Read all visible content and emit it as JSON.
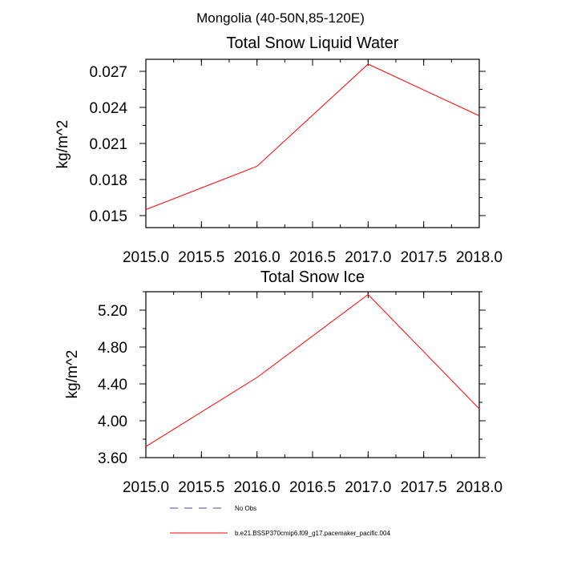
{
  "figure": {
    "suptitle": "Mongolia (40-50N,85-120E)"
  },
  "chart_data": [
    {
      "type": "line",
      "title": "Total Snow Liquid Water",
      "xlabel": "",
      "ylabel": "kg/m^2",
      "xlim": [
        2015.0,
        2018.0
      ],
      "ylim": [
        0.014,
        0.028
      ],
      "x_ticks": [
        2015.0,
        2015.5,
        2016.0,
        2016.5,
        2017.0,
        2017.5,
        2018.0
      ],
      "x_tick_labels": [
        "2015.0",
        "2015.5",
        "2016.0",
        "2016.5",
        "2017.0",
        "2017.5",
        "2018.0"
      ],
      "y_ticks": [
        0.015,
        0.018,
        0.021,
        0.024,
        0.027
      ],
      "y_tick_labels": [
        "0.015",
        "0.018",
        "0.021",
        "0.024",
        "0.027"
      ],
      "grid": false,
      "series": [
        {
          "name": "b.e21.BSSP370cmip6.f09_g17.pacemaker_pacific.004",
          "color": "#ff0000",
          "x": [
            2015.0,
            2016.0,
            2017.0,
            2018.0
          ],
          "values": [
            0.0155,
            0.0191,
            0.0276,
            0.0233
          ]
        }
      ]
    },
    {
      "type": "line",
      "title": "Total Snow Ice",
      "xlabel": "",
      "ylabel": "kg/m^2",
      "xlim": [
        2015.0,
        2018.0
      ],
      "ylim": [
        3.6,
        5.4
      ],
      "x_ticks": [
        2015.0,
        2015.5,
        2016.0,
        2016.5,
        2017.0,
        2017.5,
        2018.0
      ],
      "x_tick_labels": [
        "2015.0",
        "2015.5",
        "2016.0",
        "2016.5",
        "2017.0",
        "2017.5",
        "2018.0"
      ],
      "y_ticks": [
        3.6,
        4.0,
        4.4,
        4.8,
        5.2
      ],
      "y_tick_labels": [
        "3.60",
        "4.00",
        "4.40",
        "4.80",
        "5.20"
      ],
      "grid": false,
      "series": [
        {
          "name": "b.e21.BSSP370cmip6.f09_g17.pacemaker_pacific.004",
          "color": "#ff0000",
          "x": [
            2015.0,
            2016.0,
            2017.0,
            2018.0
          ],
          "values": [
            3.72,
            4.47,
            5.37,
            4.13
          ]
        }
      ]
    }
  ],
  "legend": {
    "placement": "bottom",
    "items": [
      {
        "label": "No Obs",
        "color": "#4444aa",
        "style": "dashed"
      },
      {
        "label": "b.e21.BSSP370cmip6.f09_g17.pacemaker_pacific.004",
        "color": "#ff0000",
        "style": "solid"
      }
    ]
  }
}
